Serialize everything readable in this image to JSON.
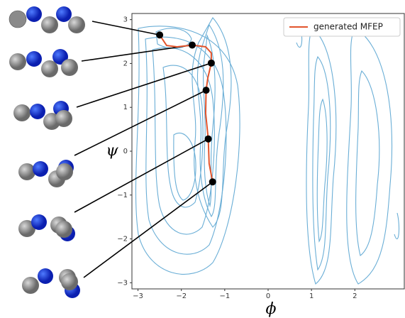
{
  "chart_data": {
    "type": "line",
    "xlabel": "ϕ",
    "ylabel": "ψ",
    "xlim": [
      -3.14,
      3.14
    ],
    "ylim": [
      -3.14,
      3.14
    ],
    "xticks": [
      {
        "value": -3,
        "label": "−3"
      },
      {
        "value": -2,
        "label": "−2"
      },
      {
        "value": -1,
        "label": "−1"
      },
      0,
      1,
      2
    ],
    "yticks": [
      {
        "value": -3,
        "label": "−3"
      },
      {
        "value": -2,
        "label": "−2"
      },
      {
        "value": -1,
        "label": "−1"
      },
      0,
      1,
      2,
      3
    ],
    "legend": "upper right",
    "series": [
      {
        "name": "generated MFEP",
        "color": "#e2542c",
        "x": [
          -2.5,
          -2.34,
          -2.1,
          -1.75,
          -1.44,
          -1.31,
          -1.31,
          -1.39,
          -1.43,
          -1.44,
          -1.38,
          -1.36,
          -1.28
        ],
        "y": [
          2.65,
          2.41,
          2.38,
          2.42,
          2.38,
          2.24,
          2.01,
          1.67,
          1.39,
          0.86,
          0.28,
          -0.28,
          -0.7
        ]
      }
    ],
    "markers": {
      "color": "#000000",
      "x": [
        -2.5,
        -1.75,
        -1.31,
        -1.43,
        -1.38,
        -1.28
      ],
      "y": [
        2.65,
        2.42,
        2.01,
        1.39,
        0.28,
        -0.7
      ]
    }
  }
}
